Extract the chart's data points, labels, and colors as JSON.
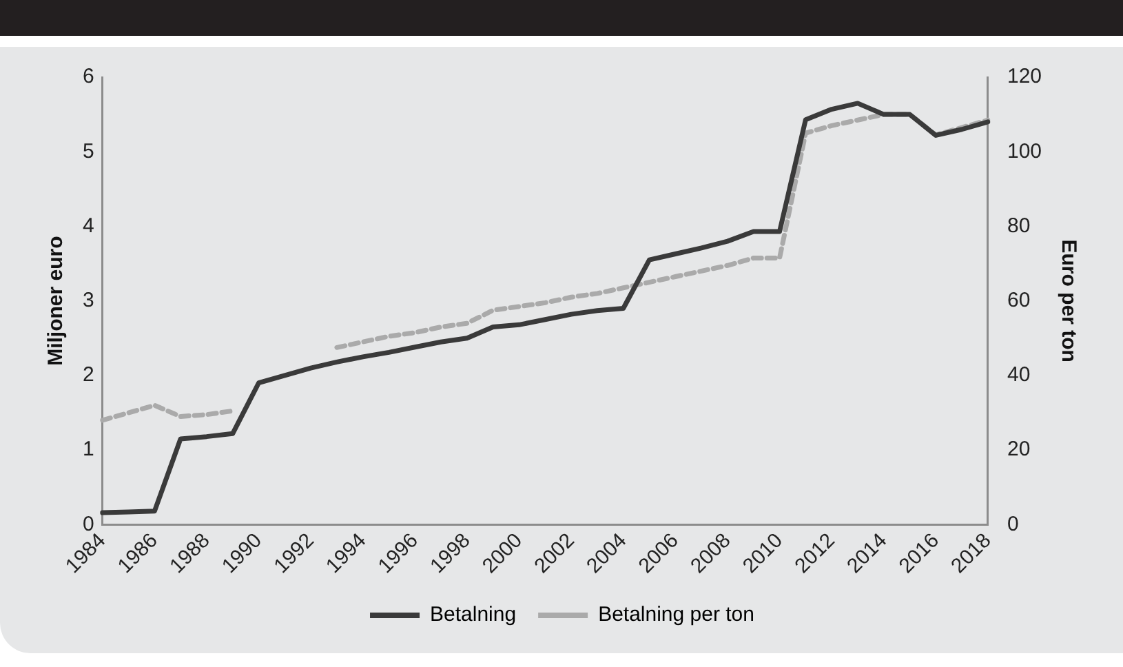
{
  "chart_data": {
    "type": "line",
    "categories": [
      "1984",
      null,
      "1986",
      null,
      "1988",
      null,
      "1990",
      null,
      "1992",
      null,
      "1994",
      null,
      "1996",
      null,
      "1998",
      null,
      "2000",
      null,
      "2002",
      null,
      "2004",
      null,
      "2006",
      null,
      "2008",
      null,
      "2010",
      null,
      "2012",
      null,
      "2014",
      null,
      "2016",
      null,
      "2018"
    ],
    "ylabel": "Miljoner euro",
    "y2label": "Euro per ton",
    "ylim": [
      0,
      6
    ],
    "yticks": [
      0,
      1,
      2,
      3,
      4,
      5,
      6
    ],
    "y2lim": [
      0,
      120
    ],
    "y2ticks": [
      0,
      20,
      40,
      60,
      80,
      100,
      120
    ],
    "grid": false,
    "legend": "bottom",
    "marker": "none",
    "series": [
      {
        "name": "Betalning",
        "color": "#3a3a3a",
        "line_style": "solid",
        "values": [
          0.16,
          0.17,
          0.18,
          1.15,
          1.18,
          1.22,
          1.9,
          2.0,
          2.1,
          2.18,
          2.25,
          2.31,
          2.38,
          2.45,
          2.5,
          2.65,
          2.68,
          2.75,
          2.82,
          2.87,
          2.9,
          3.55,
          3.63,
          3.71,
          3.8,
          3.93,
          3.93,
          5.43,
          5.57,
          5.65,
          5.5,
          5.5,
          5.22,
          5.3,
          5.4
        ]
      },
      {
        "name": "Betalning per ton",
        "color": "#aaaaaa",
        "line_style": "dashed",
        "axis": "y2",
        "values": [
          28,
          30,
          32,
          29,
          29.5,
          30.5,
          null,
          null,
          null,
          47.5,
          49,
          50.5,
          51.5,
          53,
          54,
          57.5,
          58.5,
          59.5,
          61,
          62,
          63.5,
          65,
          66.5,
          68,
          69.5,
          71.5,
          71.5,
          105,
          107,
          108.5,
          110,
          110,
          104.5,
          106.5,
          108.5
        ]
      }
    ]
  }
}
